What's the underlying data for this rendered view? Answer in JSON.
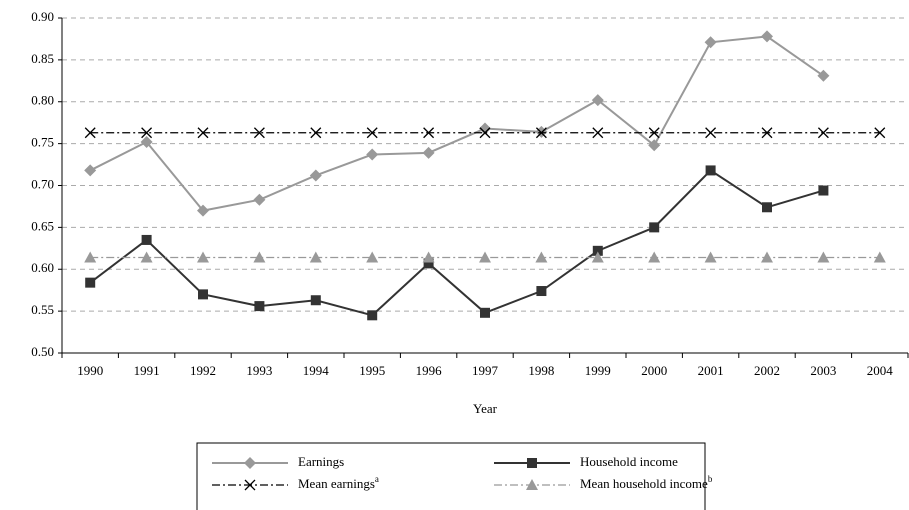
{
  "chart_data": {
    "type": "line",
    "x_label": "Year",
    "categories": [
      "1990",
      "1991",
      "1992",
      "1993",
      "1994",
      "1995",
      "1996",
      "1997",
      "1998",
      "1999",
      "2000",
      "2001",
      "2002",
      "2003",
      "2004"
    ],
    "series": [
      {
        "name": "Earnings",
        "color": "#999999",
        "marker": "diamond",
        "dash": "solid",
        "values": [
          0.718,
          0.752,
          0.67,
          0.683,
          0.712,
          0.737,
          0.739,
          0.768,
          0.764,
          0.802,
          0.748,
          0.871,
          0.878,
          0.831,
          null
        ]
      },
      {
        "name": "Household income",
        "color": "#333333",
        "marker": "square",
        "dash": "solid",
        "values": [
          0.584,
          0.635,
          0.57,
          0.556,
          0.563,
          0.545,
          0.607,
          0.548,
          0.574,
          0.622,
          0.65,
          0.718,
          0.674,
          0.694,
          null
        ]
      },
      {
        "name": "Mean earnings",
        "footnote": "a",
        "color": "#000000",
        "marker": "x",
        "dash": "dashdot",
        "values": [
          0.763,
          0.763,
          0.763,
          0.763,
          0.763,
          0.763,
          0.763,
          0.763,
          0.763,
          0.763,
          0.763,
          0.763,
          0.763,
          0.763,
          0.763
        ]
      },
      {
        "name": "Mean household income",
        "footnote": "b",
        "color": "#999999",
        "marker": "triangle",
        "dash": "dashdot",
        "values": [
          0.614,
          0.614,
          0.614,
          0.614,
          0.614,
          0.614,
          0.614,
          0.614,
          0.614,
          0.614,
          0.614,
          0.614,
          0.614,
          0.614,
          0.614
        ]
      }
    ],
    "ylim": [
      0.5,
      0.9
    ],
    "yticks": [
      {
        "value": 0.5,
        "label": "0.50"
      },
      {
        "value": 0.55,
        "label": "0.55"
      },
      {
        "value": 0.6,
        "label": "0.60"
      },
      {
        "value": 0.65,
        "label": "0.65"
      },
      {
        "value": 0.7,
        "label": "0.70"
      },
      {
        "value": 0.75,
        "label": "0.75"
      },
      {
        "value": 0.8,
        "label": "0.80"
      },
      {
        "value": 0.85,
        "label": "0.85"
      },
      {
        "value": 0.9,
        "label": "0.90"
      }
    ],
    "grid": true,
    "legend": "bottom"
  }
}
